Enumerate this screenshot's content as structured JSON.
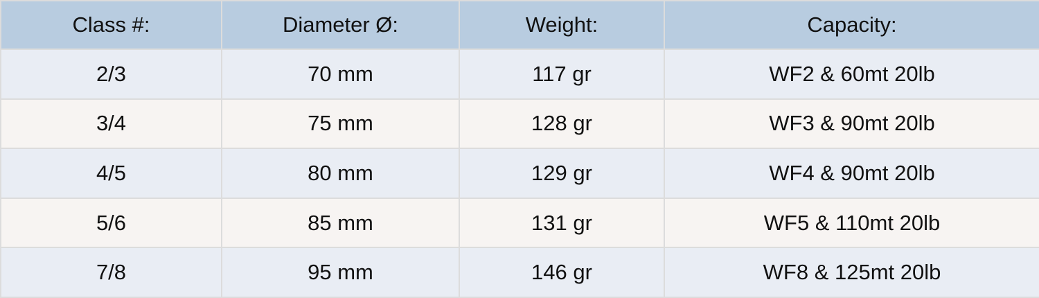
{
  "headers": [
    "Class #:",
    "Diameter Ø:",
    "Weight:",
    "Capacity:"
  ],
  "rows": [
    [
      "2/3",
      "70 mm",
      "117 gr",
      "WF2 & 60mt 20lb"
    ],
    [
      "3/4",
      "75 mm",
      "128 gr",
      "WF3 & 90mt 20lb"
    ],
    [
      "4/5",
      "80 mm",
      "129 gr",
      "WF4 & 90mt 20lb"
    ],
    [
      "5/6",
      "85 mm",
      "131 gr",
      "WF5 & 110mt 20lb"
    ],
    [
      "7/8",
      "95 mm",
      "146 gr",
      "WF8 & 125mt 20lb"
    ]
  ],
  "colors": {
    "header": "#b8cce0",
    "row_odd": "#e9edf4",
    "row_even": "#f7f4f2",
    "border": "#dcdcdc"
  }
}
